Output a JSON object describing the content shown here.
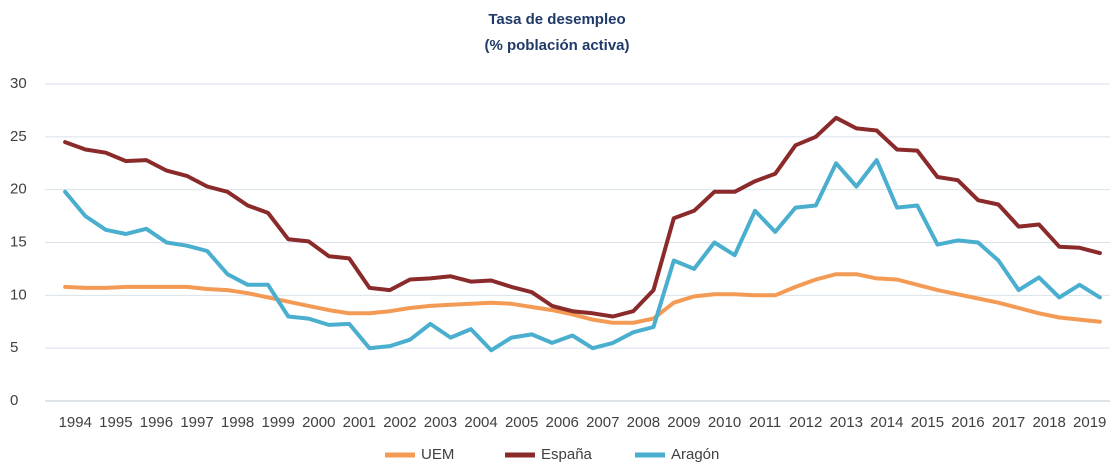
{
  "chart_data": {
    "type": "line",
    "title": "Tasa de desempleo",
    "subtitle": "(% población  activa)",
    "categories": [
      "1994",
      null,
      "1995",
      null,
      "1996",
      null,
      "1997",
      null,
      "1998",
      null,
      "1999",
      null,
      "2000",
      null,
      "2001",
      null,
      "2002",
      null,
      "2003",
      null,
      "2004",
      null,
      "2005",
      null,
      "2006",
      null,
      "2007",
      null,
      "2008",
      null,
      "2009",
      null,
      "2010",
      null,
      "2011",
      null,
      "2012",
      null,
      "2013",
      null,
      "2014",
      null,
      "2015",
      null,
      "2016",
      null,
      "2017",
      null,
      "2018",
      null,
      "2019",
      null
    ],
    "series": [
      {
        "name": "UEM",
        "color": "#f39a55",
        "values": [
          10.8,
          10.7,
          10.7,
          10.8,
          10.8,
          10.8,
          10.8,
          10.6,
          10.5,
          10.2,
          9.8,
          9.4,
          9.0,
          8.6,
          8.3,
          8.3,
          8.5,
          8.8,
          9.0,
          9.1,
          9.2,
          9.3,
          9.2,
          8.9,
          8.6,
          8.2,
          7.7,
          7.4,
          7.4,
          7.8,
          9.3,
          9.9,
          10.1,
          10.1,
          10.0,
          10.0,
          10.8,
          11.5,
          12.0,
          12.0,
          11.6,
          11.5,
          11.0,
          10.5,
          10.1,
          9.7,
          9.3,
          8.8,
          8.3,
          7.9,
          7.7,
          7.5
        ]
      },
      {
        "name": "España",
        "color": "#8b2a2a",
        "values": [
          24.5,
          23.8,
          23.5,
          22.7,
          22.8,
          21.8,
          21.3,
          20.3,
          19.8,
          18.5,
          17.8,
          15.3,
          15.1,
          13.7,
          13.5,
          10.7,
          10.5,
          11.5,
          11.6,
          11.8,
          11.3,
          11.4,
          10.8,
          10.3,
          9.0,
          8.5,
          8.3,
          8.0,
          8.5,
          10.5,
          17.3,
          18.0,
          19.8,
          19.8,
          20.8,
          21.5,
          24.2,
          25.0,
          26.8,
          25.8,
          25.6,
          23.8,
          23.7,
          21.2,
          20.9,
          19.0,
          18.6,
          16.5,
          16.7,
          14.6,
          14.5,
          14.0
        ]
      },
      {
        "name": "Aragón",
        "color": "#4aaecf",
        "values": [
          19.8,
          17.5,
          16.2,
          15.8,
          16.3,
          15.0,
          14.7,
          14.2,
          12.0,
          11.0,
          11.0,
          8.0,
          7.8,
          7.2,
          7.3,
          5.0,
          5.2,
          5.8,
          7.3,
          6.0,
          6.8,
          4.8,
          6.0,
          6.3,
          5.5,
          6.2,
          5.0,
          5.5,
          6.5,
          7.0,
          13.3,
          12.5,
          15.0,
          13.8,
          18.0,
          16.0,
          18.3,
          18.5,
          22.5,
          20.3,
          22.8,
          18.3,
          18.5,
          14.8,
          15.2,
          15.0,
          13.3,
          10.5,
          11.7,
          9.8,
          11.0,
          9.8
        ]
      }
    ],
    "ylim": [
      0,
      30
    ],
    "yticks": [
      0,
      5,
      10,
      15,
      20,
      25,
      30
    ],
    "grid": true,
    "legend": "bottom"
  }
}
